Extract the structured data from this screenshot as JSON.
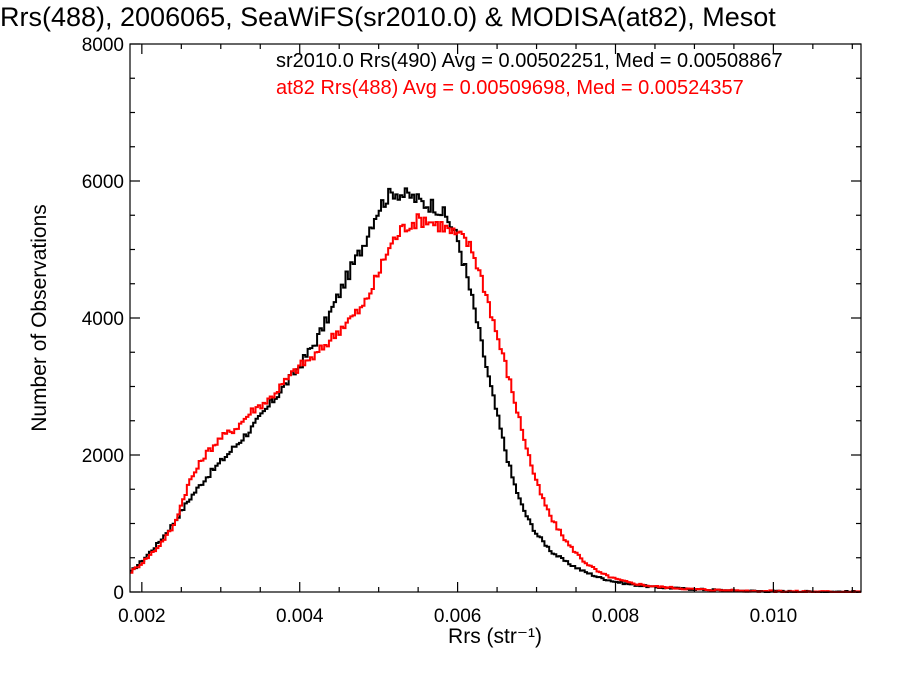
{
  "title": "Rrs(488), 2006065, SeaWiFS(sr2010.0) & MODISA(at82), Mesot",
  "colors": {
    "series1": "#000000",
    "series2": "#ff0000",
    "axes": "#000000"
  },
  "chart_data": {
    "type": "line",
    "title": "Rrs(488), 2006065, SeaWiFS(sr2010.0) & MODISA(at82), Mesot",
    "xlabel": "Rrs (str⁻¹)",
    "ylabel": "Number of Observations",
    "xlim": [
      0.00185,
      0.01111
    ],
    "ylim": [
      0,
      8000
    ],
    "xticks": [
      0.002,
      0.004,
      0.006,
      0.008,
      0.01
    ],
    "xtick_labels": [
      "0.002",
      "0.004",
      "0.006",
      "0.008",
      "0.010"
    ],
    "yticks": [
      0,
      2000,
      4000,
      6000,
      8000
    ],
    "ytick_labels": [
      "0",
      "2000",
      "4000",
      "6000",
      "8000"
    ],
    "grid": false,
    "legend_position": "top-right",
    "series": [
      {
        "legend": "sr2010.0 Rrs(490) Avg = 0.00502251, Med = 0.00508867",
        "style": "step",
        "x": [
          0.00185,
          0.002,
          0.0022,
          0.0024,
          0.0026,
          0.0028,
          0.003,
          0.0032,
          0.0034,
          0.0036,
          0.0038,
          0.004,
          0.0042,
          0.0044,
          0.0046,
          0.0048,
          0.0049,
          0.005,
          0.0051,
          0.0052,
          0.0053,
          0.0054,
          0.0055,
          0.0056,
          0.0057,
          0.0058,
          0.0059,
          0.006,
          0.0061,
          0.0062,
          0.0063,
          0.0064,
          0.0065,
          0.0066,
          0.0067,
          0.0068,
          0.0069,
          0.007,
          0.0072,
          0.0074,
          0.0076,
          0.0078,
          0.008,
          0.0082,
          0.0085,
          0.009,
          0.0095,
          0.01,
          0.0105,
          0.0111
        ],
        "y": [
          280,
          450,
          700,
          1000,
          1350,
          1650,
          1900,
          2150,
          2400,
          2700,
          3000,
          3300,
          3650,
          4100,
          4600,
          5050,
          5350,
          5600,
          5750,
          5850,
          5800,
          5780,
          5720,
          5660,
          5650,
          5550,
          5400,
          5150,
          4700,
          4200,
          3650,
          3100,
          2600,
          2100,
          1650,
          1300,
          1050,
          850,
          580,
          420,
          300,
          210,
          150,
          110,
          70,
          40,
          20,
          10,
          5,
          3
        ]
      },
      {
        "legend": "at82 Rrs(488) Avg = 0.00509698, Med = 0.00524357",
        "style": "step",
        "x": [
          0.00185,
          0.002,
          0.0022,
          0.0024,
          0.0026,
          0.0028,
          0.003,
          0.0032,
          0.0034,
          0.0036,
          0.0038,
          0.004,
          0.0042,
          0.0044,
          0.0046,
          0.0048,
          0.005,
          0.0051,
          0.0052,
          0.0053,
          0.0054,
          0.0055,
          0.0056,
          0.0057,
          0.0058,
          0.0059,
          0.006,
          0.0061,
          0.0062,
          0.0063,
          0.0064,
          0.0065,
          0.0066,
          0.0067,
          0.0068,
          0.0069,
          0.007,
          0.0071,
          0.0072,
          0.0074,
          0.0076,
          0.0078,
          0.008,
          0.0082,
          0.0085,
          0.009,
          0.0095,
          0.01,
          0.0105,
          0.0111
        ],
        "y": [
          280,
          420,
          650,
          950,
          1600,
          2000,
          2250,
          2400,
          2650,
          2800,
          3050,
          3300,
          3450,
          3700,
          3950,
          4150,
          4650,
          4950,
          5150,
          5300,
          5380,
          5420,
          5450,
          5380,
          5350,
          5270,
          5200,
          5150,
          4950,
          4600,
          4200,
          3750,
          3350,
          2900,
          2450,
          2000,
          1600,
          1300,
          1050,
          700,
          450,
          280,
          190,
          130,
          80,
          40,
          20,
          10,
          5,
          3
        ]
      }
    ]
  }
}
